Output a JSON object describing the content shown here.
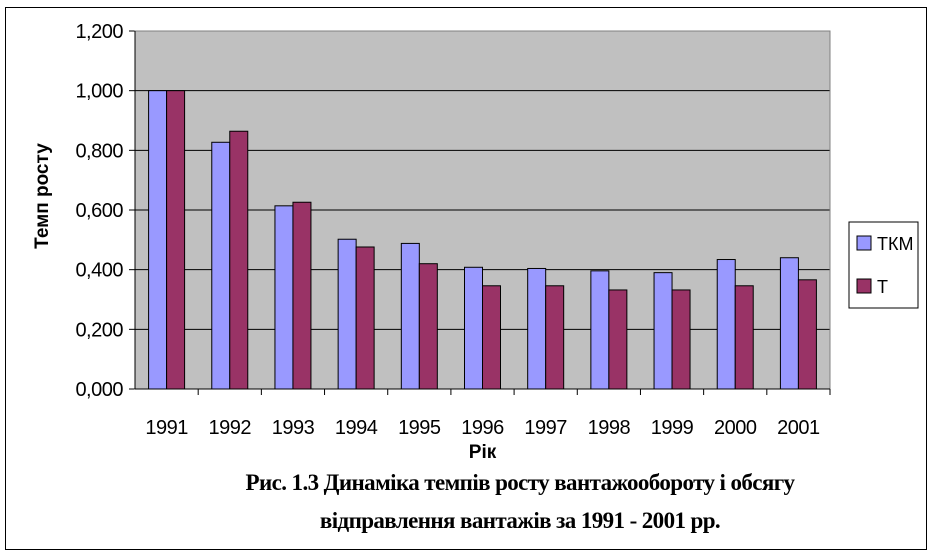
{
  "chart_data": {
    "type": "bar",
    "categories": [
      "1991",
      "1992",
      "1993",
      "1994",
      "1995",
      "1996",
      "1997",
      "1998",
      "1999",
      "2000",
      "2001"
    ],
    "series": [
      {
        "name": "ТКМ",
        "color": "#9999ff",
        "values": [
          1.0,
          0.827,
          0.614,
          0.502,
          0.488,
          0.408,
          0.404,
          0.396,
          0.39,
          0.434,
          0.44
        ]
      },
      {
        "name": "Т",
        "color": "#993366",
        "values": [
          1.0,
          0.864,
          0.626,
          0.476,
          0.42,
          0.346,
          0.346,
          0.332,
          0.332,
          0.346,
          0.366
        ]
      }
    ],
    "xlabel": "Рік",
    "ylabel": "Темп росту",
    "ylim": [
      0,
      1.2
    ],
    "yticks": [
      "0,000",
      "0,200",
      "0,400",
      "0,600",
      "0,800",
      "1,000",
      "1,200"
    ],
    "grid": true,
    "plot_background": "#c0c0c0",
    "legend_position": "right"
  },
  "caption": {
    "line1": "Рис. 1.3 Динаміка темпів росту вантажообороту і обсягу",
    "line2": "відправлення вантажів за 1991 - 2001 рр."
  }
}
